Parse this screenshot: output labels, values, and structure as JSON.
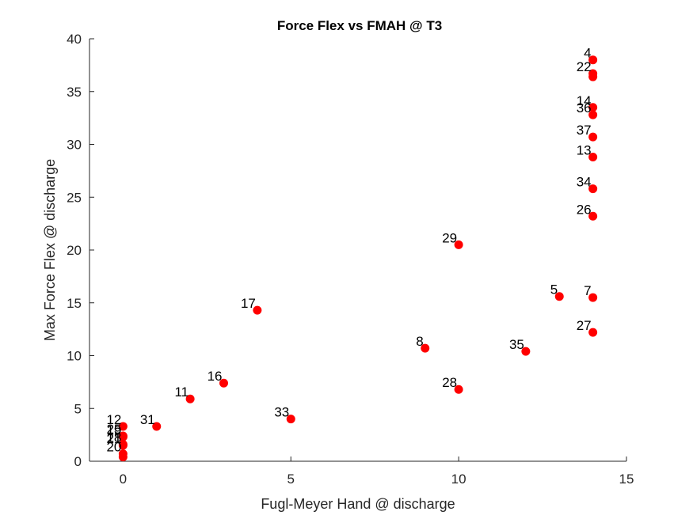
{
  "chart_data": {
    "type": "scatter",
    "title": "Force Flex vs FMAH @ T3",
    "xlabel": "Fugl-Meyer Hand @ discharge",
    "ylabel": "Max Force Flex @ discharge",
    "xlim": [
      -1,
      15
    ],
    "ylim": [
      0,
      40
    ],
    "xticks": [
      0,
      5,
      10,
      15
    ],
    "yticks": [
      0,
      5,
      10,
      15,
      20,
      25,
      30,
      35,
      40
    ],
    "grid": false,
    "marker_color": "#ff0000",
    "points": [
      {
        "label": "4",
        "x": 14,
        "y": 38.0
      },
      {
        "label": "22",
        "x": 14,
        "y": 36.7
      },
      {
        "label": "",
        "x": 14,
        "y": 36.4
      },
      {
        "label": "14",
        "x": 14,
        "y": 33.5
      },
      {
        "label": "36",
        "x": 14,
        "y": 32.8
      },
      {
        "label": "37",
        "x": 14,
        "y": 30.7
      },
      {
        "label": "13",
        "x": 14,
        "y": 28.8
      },
      {
        "label": "34",
        "x": 14,
        "y": 25.8
      },
      {
        "label": "26",
        "x": 14,
        "y": 23.2
      },
      {
        "label": "29",
        "x": 10,
        "y": 20.5
      },
      {
        "label": "5",
        "x": 13,
        "y": 15.6
      },
      {
        "label": "7",
        "x": 14,
        "y": 15.5
      },
      {
        "label": "17",
        "x": 4,
        "y": 14.3
      },
      {
        "label": "27",
        "x": 14,
        "y": 12.2
      },
      {
        "label": "8",
        "x": 9,
        "y": 10.7
      },
      {
        "label": "35",
        "x": 12,
        "y": 10.4
      },
      {
        "label": "16",
        "x": 3,
        "y": 7.4
      },
      {
        "label": "28",
        "x": 10,
        "y": 6.8
      },
      {
        "label": "11",
        "x": 2,
        "y": 5.9
      },
      {
        "label": "33",
        "x": 5,
        "y": 4.0
      },
      {
        "label": "31",
        "x": 1,
        "y": 3.3
      },
      {
        "label": "12",
        "x": 0,
        "y": 3.3
      },
      {
        "label": "25",
        "x": 0,
        "y": 2.4
      },
      {
        "label": "19",
        "x": 0,
        "y": 2.3
      },
      {
        "label": "18",
        "x": 0,
        "y": 1.6
      },
      {
        "label": "21",
        "x": 0,
        "y": 1.5
      },
      {
        "label": "20",
        "x": 0,
        "y": 0.7
      },
      {
        "label": "",
        "x": 0,
        "y": 0.4
      }
    ]
  }
}
